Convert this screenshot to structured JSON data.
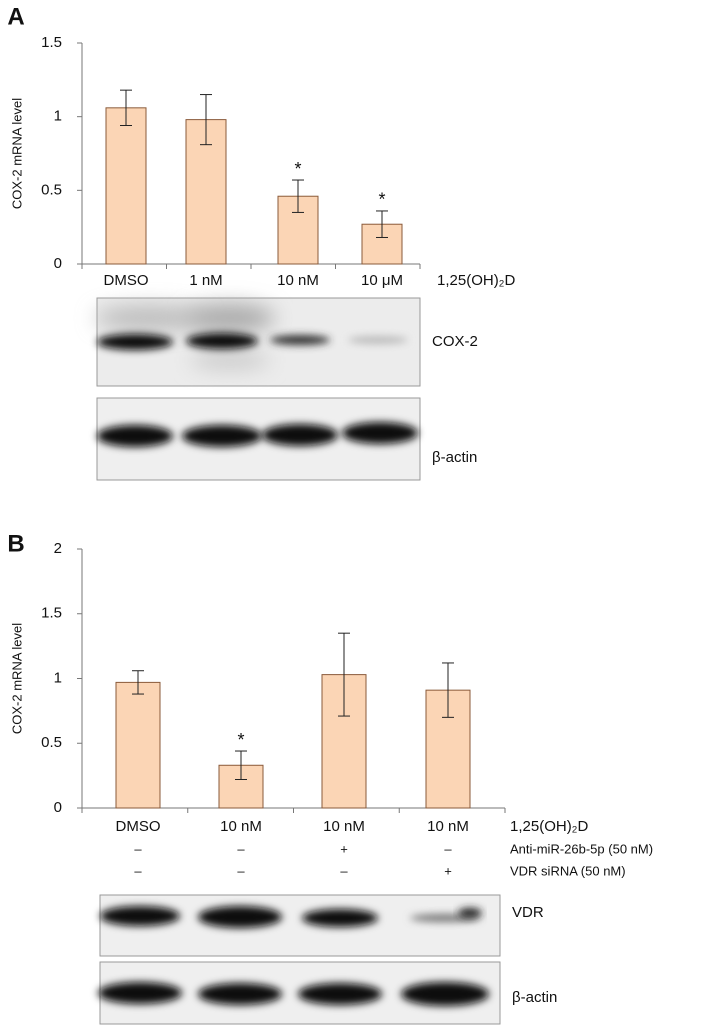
{
  "chart_data": [
    {
      "type": "bar",
      "panel": "A",
      "y_label": "COX-2 mRNA level",
      "treatment_label": "1,25(OH)₂D",
      "categories": [
        "DMSO",
        "1 nM",
        "10 nM",
        "10 μM"
      ],
      "values": [
        1.06,
        0.98,
        0.46,
        0.27
      ],
      "errors": [
        0.12,
        0.17,
        0.11,
        0.09
      ],
      "significance": [
        null,
        null,
        "*",
        "*"
      ],
      "color": "#fbd5b5",
      "edge_color": "#8a5a3a",
      "ylim": [
        0,
        1.5
      ],
      "yticks": [
        0,
        0.5,
        1,
        1.5
      ],
      "blot_labels": [
        "COX-2",
        "β-actin"
      ]
    },
    {
      "type": "bar",
      "panel": "B",
      "y_label": "COX-2 mRNA level",
      "treatment_label": "1,25(OH)₂D",
      "categories": [
        "DMSO",
        "10 nM",
        "10 nM",
        "10 nM"
      ],
      "values": [
        0.97,
        0.33,
        1.03,
        0.91
      ],
      "errors": [
        0.09,
        0.11,
        0.32,
        0.21
      ],
      "significance": [
        null,
        "*",
        null,
        null
      ],
      "treatments": [
        {
          "name": "Anti-miR-26b-5p (50 nM)",
          "signs": [
            "–",
            "–",
            "+",
            "–"
          ]
        },
        {
          "name": "VDR siRNA (50 nM)",
          "signs": [
            "–",
            "–",
            "–",
            "+"
          ]
        }
      ],
      "color": "#fbd5b5",
      "edge_color": "#8a5a3a",
      "ylim": [
        0,
        2
      ],
      "yticks": [
        0,
        0.5,
        1,
        1.5,
        2
      ],
      "blot_labels": [
        "VDR",
        "β-actin"
      ]
    }
  ]
}
